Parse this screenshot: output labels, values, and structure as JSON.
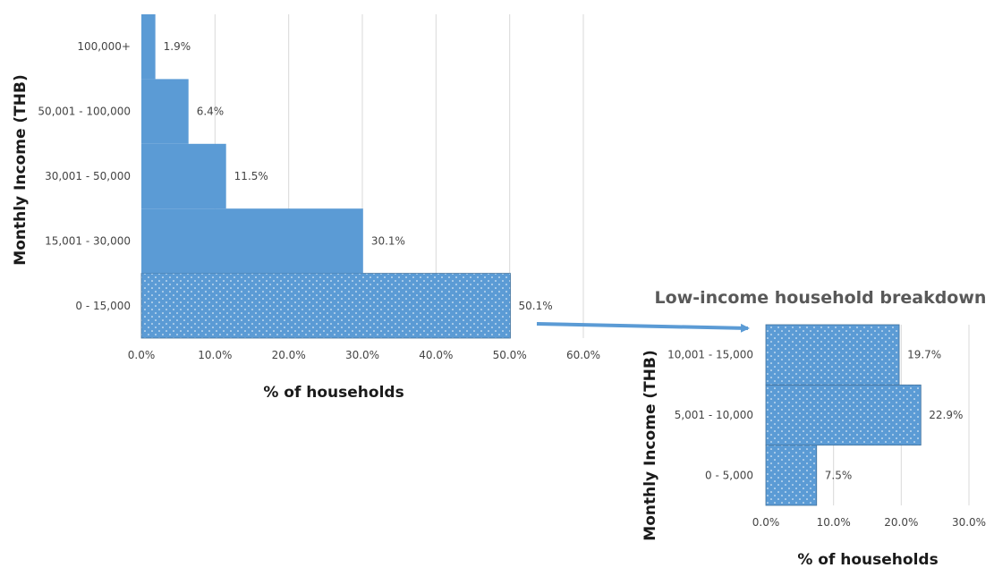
{
  "colors": {
    "bar": "#5b9bd5",
    "bar_stroke": "#41719c",
    "dots": "#ffffff",
    "arrow": "#5b9bd5",
    "grid": "#d9d9d9"
  },
  "chart_data": [
    {
      "type": "bar",
      "orientation": "horizontal",
      "title": "",
      "xlabel": "% of households",
      "ylabel": "Monthly Income (THB)",
      "xlim": [
        0,
        60
      ],
      "x_ticks": [
        "0.0%",
        "10.0%",
        "20.0%",
        "30.0%",
        "40.0%",
        "50.0%",
        "60.0%"
      ],
      "grid": true,
      "categories": [
        "0 - 15,000",
        "15,001 - 30,000",
        "30,001 - 50,000",
        "50,001 - 100,000",
        "100,000+"
      ],
      "values": [
        50.1,
        30.1,
        11.5,
        6.4,
        1.9
      ],
      "data_labels": [
        "50.1%",
        "30.1%",
        "11.5%",
        "6.4%",
        "1.9%"
      ],
      "dotted_categories": [
        "0 - 15,000"
      ]
    },
    {
      "type": "bar",
      "orientation": "horizontal",
      "title": "Low-income household breakdown",
      "xlabel": "% of households",
      "ylabel": "Monthly Income (THB)",
      "xlim": [
        0,
        30
      ],
      "x_ticks": [
        "0.0%",
        "10.0%",
        "20.0%",
        "30.0%"
      ],
      "grid": true,
      "categories": [
        "0 - 5,000",
        "5,001 - 10,000",
        "10,001 - 15,000"
      ],
      "values": [
        7.5,
        22.9,
        19.7
      ],
      "data_labels": [
        "7.5%",
        "22.9%",
        "19.7%"
      ],
      "dotted_categories": [
        "0 - 5,000",
        "5,001 - 10,000",
        "10,001 - 15,000"
      ]
    }
  ]
}
